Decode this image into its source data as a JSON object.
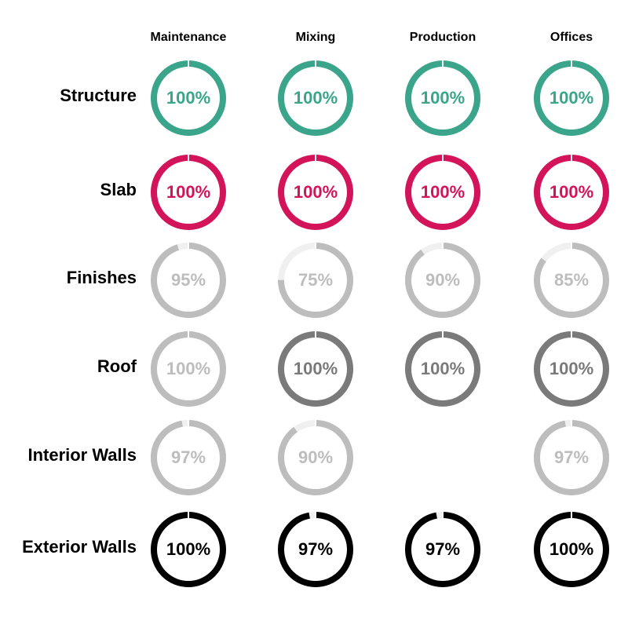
{
  "chart_data": {
    "type": "radial-progress-grid",
    "columns": [
      "Maintenance",
      "Mixing",
      "Production",
      "Offices"
    ],
    "rows": [
      {
        "label": "Structure",
        "values": [
          100,
          100,
          100,
          100
        ],
        "labels": [
          "100%",
          "100%",
          "100%",
          "100%"
        ],
        "color": "#3aa58a"
      },
      {
        "label": "Slab",
        "values": [
          100,
          100,
          100,
          100
        ],
        "labels": [
          "100%",
          "100%",
          "100%",
          "100%"
        ],
        "color": "#d4145a"
      },
      {
        "label": "Finishes",
        "values": [
          95,
          75,
          90,
          85
        ],
        "labels": [
          "95%",
          "75%",
          "90%",
          "85%"
        ],
        "color": "#bdbdbd"
      },
      {
        "label": "Roof",
        "values": [
          100,
          100,
          100,
          100
        ],
        "labels": [
          "100%",
          "100%",
          "100%",
          "100%"
        ],
        "colors": [
          "#bdbdbd",
          "#7a7a7a",
          "#7a7a7a",
          "#7a7a7a"
        ]
      },
      {
        "label": "Interior Walls",
        "values": [
          97,
          90,
          null,
          97
        ],
        "labels": [
          "97%",
          "90%",
          null,
          "97%"
        ],
        "color": "#bdbdbd"
      },
      {
        "label": "Exterior Walls",
        "values": [
          100,
          97,
          97,
          100
        ],
        "labels": [
          "100%",
          "97%",
          "97%",
          "100%"
        ],
        "color": "#000000"
      }
    ],
    "track_color": "#f0f0f0",
    "value_range": [
      0,
      100
    ]
  }
}
